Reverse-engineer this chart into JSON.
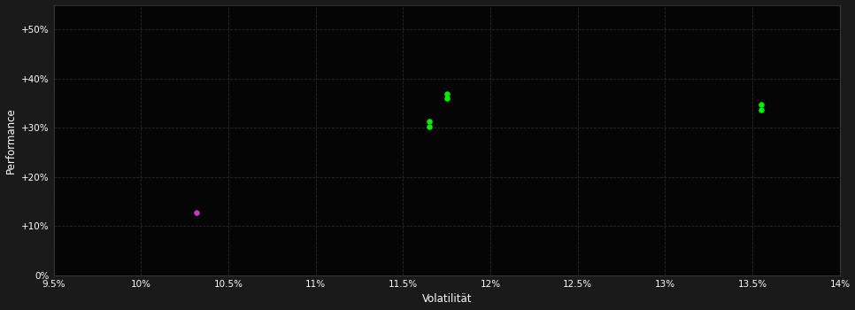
{
  "background_color": "#1a1a1a",
  "plot_bg_color": "#050505",
  "grid_color": "#2a2a2a",
  "xlabel": "Volatilität",
  "ylabel": "Performance",
  "xlim": [
    0.095,
    0.14
  ],
  "ylim": [
    0.0,
    0.55
  ],
  "xticks": [
    0.095,
    0.1,
    0.105,
    0.11,
    0.115,
    0.12,
    0.125,
    0.13,
    0.135,
    0.14
  ],
  "yticks": [
    0.0,
    0.1,
    0.2,
    0.3,
    0.4,
    0.5
  ],
  "ytick_labels": [
    "0%",
    "+10%",
    "+20%",
    "+30%",
    "+40%",
    "+50%"
  ],
  "xtick_labels": [
    "9.5%",
    "10%",
    "10.5%",
    "11%",
    "11.5%",
    "12%",
    "12.5%",
    "13%",
    "13.5%",
    "14%"
  ],
  "points_green": [
    [
      0.1175,
      0.37
    ],
    [
      0.1175,
      0.36
    ],
    [
      0.1165,
      0.313
    ],
    [
      0.1165,
      0.303
    ],
    [
      0.1355,
      0.347
    ],
    [
      0.1355,
      0.337
    ]
  ],
  "points_magenta": [
    [
      0.1032,
      0.127
    ]
  ],
  "green_color": "#00ee00",
  "magenta_color": "#cc33cc",
  "text_color": "#ffffff",
  "tick_color": "#ffffff",
  "axis_color": "#444444"
}
